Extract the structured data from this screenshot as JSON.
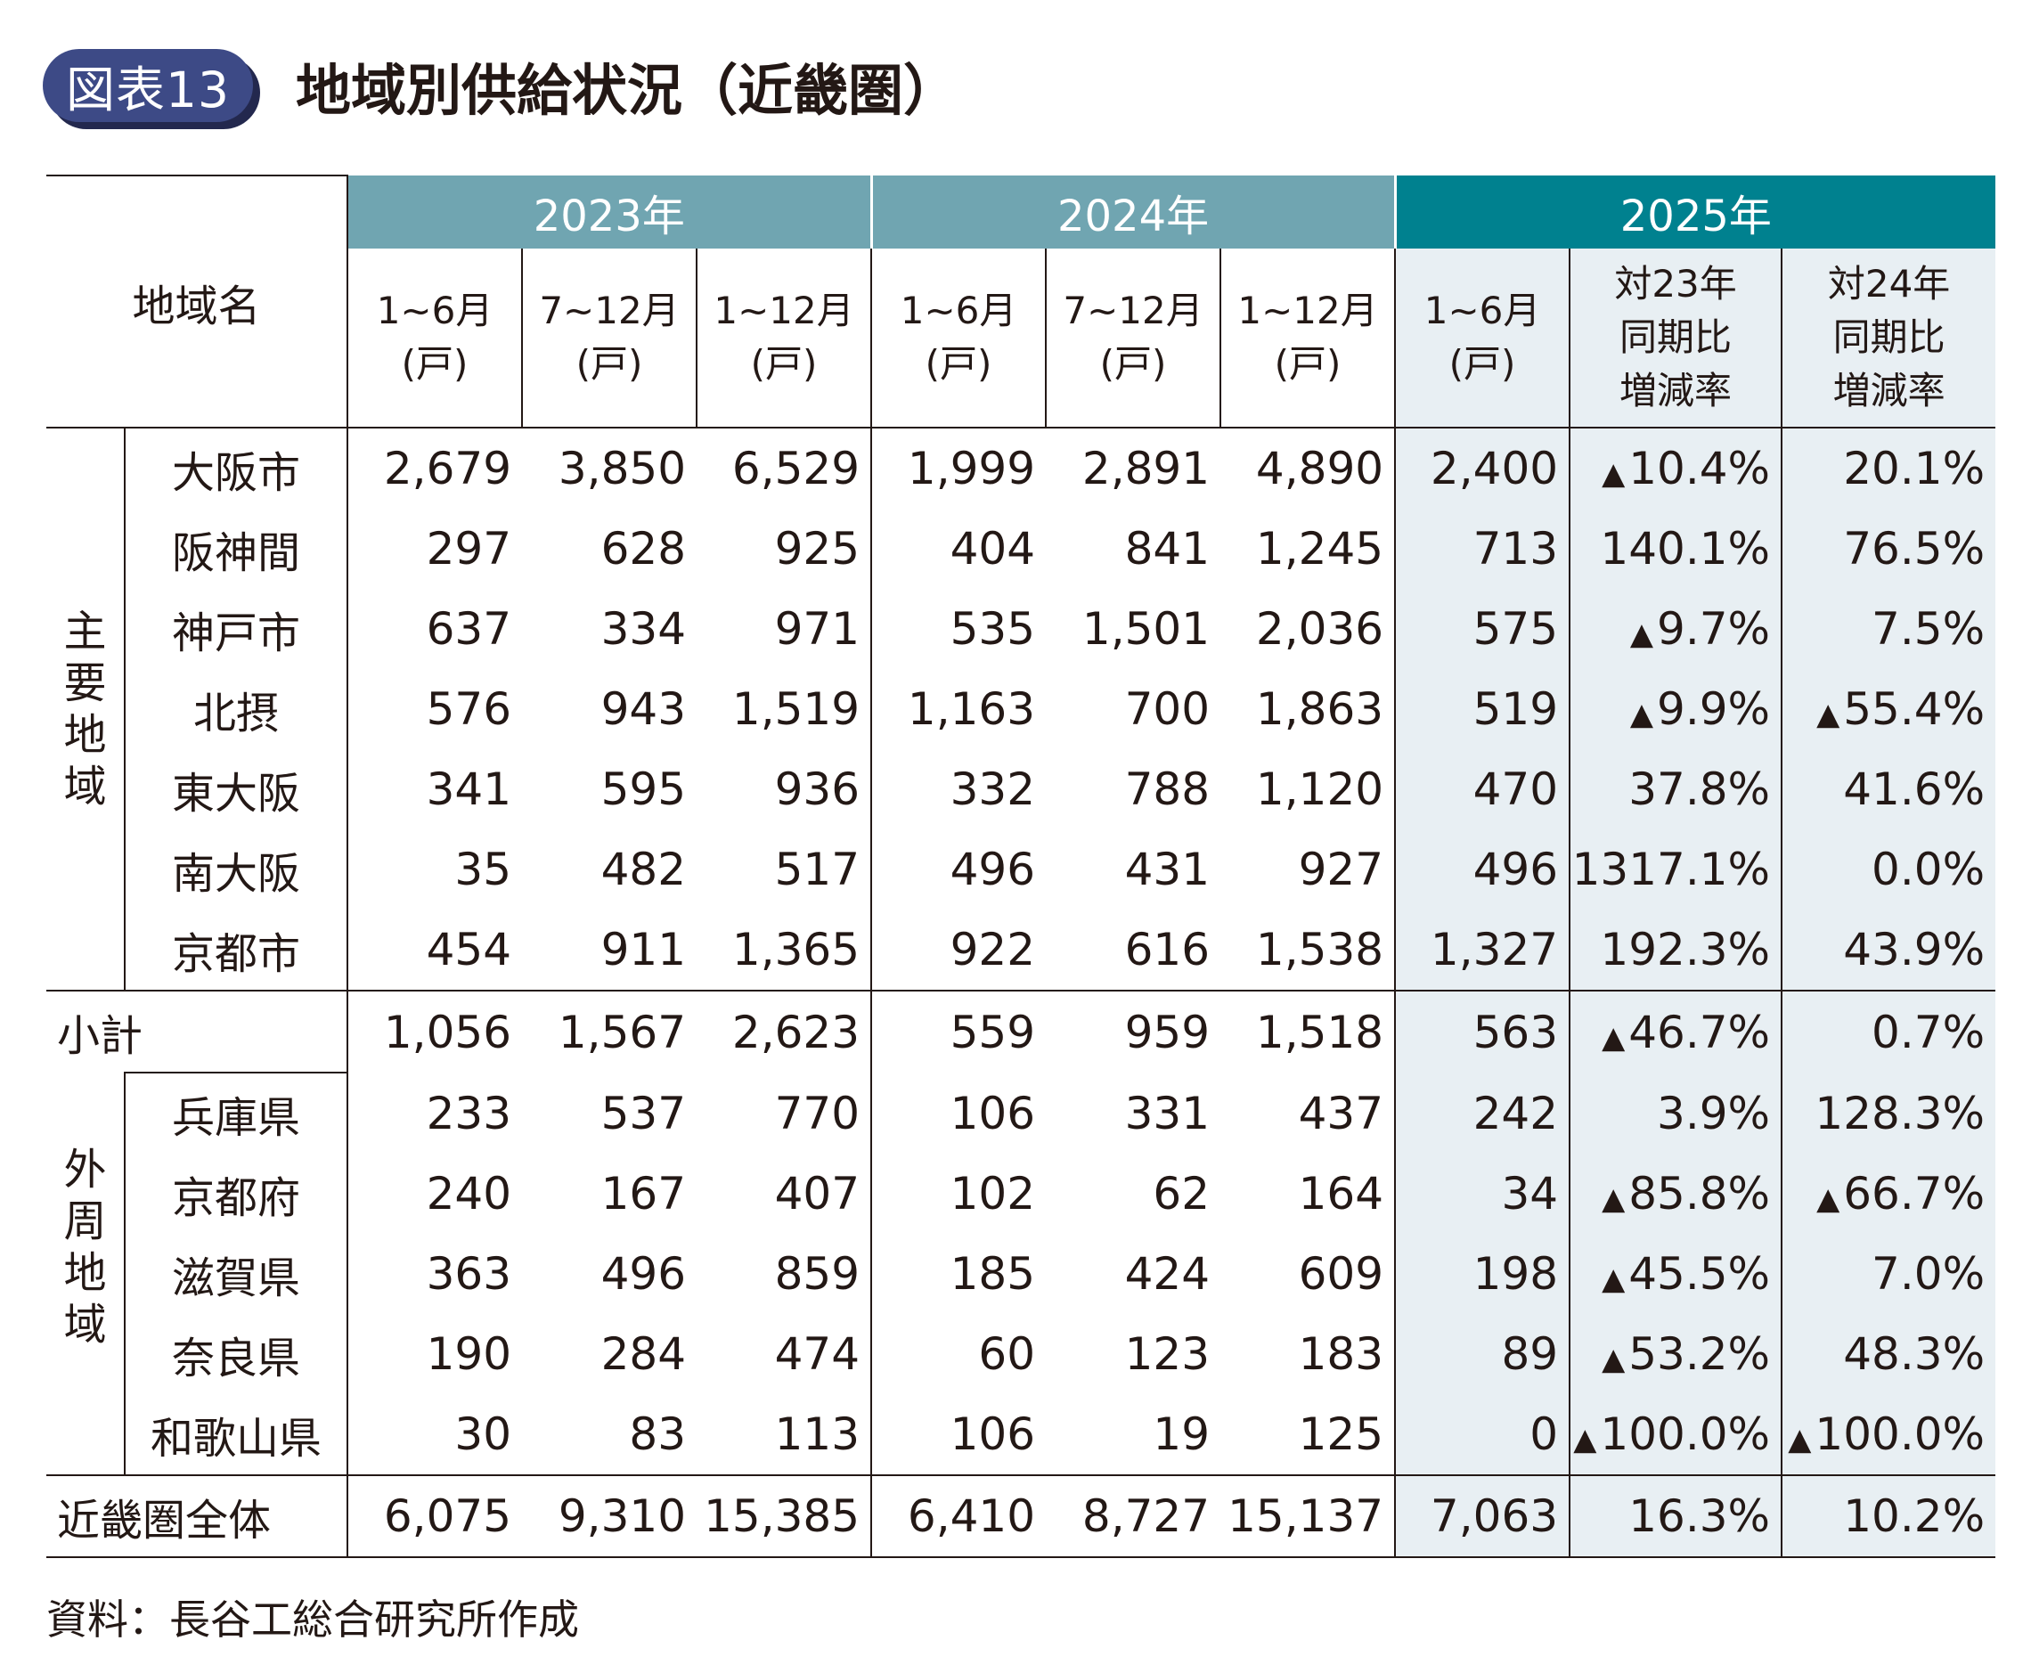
{
  "header": {
    "badge": "図表13",
    "title": "地域別供給状況（近畿圏）"
  },
  "table": {
    "area_header": "地域名",
    "years": [
      "2023年",
      "2024年",
      "2025年"
    ],
    "period_headers": [
      "1~6月\n(戸)",
      "7~12月\n(戸)",
      "1~12月\n(戸)",
      "1~6月\n(戸)",
      "7~12月\n(戸)",
      "1~12月\n(戸)",
      "1~6月\n(戸)",
      "対23年\n同期比\n増減率",
      "対24年\n同期比\n増減率"
    ],
    "group_main": "主要地域",
    "group_outer": "外周地域",
    "decrease_marker": "▲",
    "main_rows": [
      {
        "area": "大阪市",
        "values": [
          "2,679",
          "3,850",
          "6,529",
          "1,999",
          "2,891",
          "4,890",
          "2,400"
        ],
        "vs23": "10.4%",
        "vs23_neg": true,
        "vs24": "20.1%",
        "vs24_neg": false
      },
      {
        "area": "阪神間",
        "values": [
          "297",
          "628",
          "925",
          "404",
          "841",
          "1,245",
          "713"
        ],
        "vs23": "140.1%",
        "vs23_neg": false,
        "vs24": "76.5%",
        "vs24_neg": false
      },
      {
        "area": "神戸市",
        "values": [
          "637",
          "334",
          "971",
          "535",
          "1,501",
          "2,036",
          "575"
        ],
        "vs23": "9.7%",
        "vs23_neg": true,
        "vs24": "7.5%",
        "vs24_neg": false
      },
      {
        "area": "北摂",
        "values": [
          "576",
          "943",
          "1,519",
          "1,163",
          "700",
          "1,863",
          "519"
        ],
        "vs23": "9.9%",
        "vs23_neg": true,
        "vs24": "55.4%",
        "vs24_neg": true
      },
      {
        "area": "東大阪",
        "values": [
          "341",
          "595",
          "936",
          "332",
          "788",
          "1,120",
          "470"
        ],
        "vs23": "37.8%",
        "vs23_neg": false,
        "vs24": "41.6%",
        "vs24_neg": false
      },
      {
        "area": "南大阪",
        "values": [
          "35",
          "482",
          "517",
          "496",
          "431",
          "927",
          "496"
        ],
        "vs23": "1317.1%",
        "vs23_neg": false,
        "vs24": "0.0%",
        "vs24_neg": false
      },
      {
        "area": "京都市",
        "values": [
          "454",
          "911",
          "1,365",
          "922",
          "616",
          "1,538",
          "1,327"
        ],
        "vs23": "192.3%",
        "vs23_neg": false,
        "vs24": "43.9%",
        "vs24_neg": false
      }
    ],
    "subtotal": {
      "area": "小計",
      "values": [
        "1,056",
        "1,567",
        "2,623",
        "559",
        "959",
        "1,518",
        "563"
      ],
      "vs23": "46.7%",
      "vs23_neg": true,
      "vs24": "0.7%",
      "vs24_neg": false
    },
    "outer_rows": [
      {
        "area": "兵庫県",
        "values": [
          "233",
          "537",
          "770",
          "106",
          "331",
          "437",
          "242"
        ],
        "vs23": "3.9%",
        "vs23_neg": false,
        "vs24": "128.3%",
        "vs24_neg": false
      },
      {
        "area": "京都府",
        "values": [
          "240",
          "167",
          "407",
          "102",
          "62",
          "164",
          "34"
        ],
        "vs23": "85.8%",
        "vs23_neg": true,
        "vs24": "66.7%",
        "vs24_neg": true
      },
      {
        "area": "滋賀県",
        "values": [
          "363",
          "496",
          "859",
          "185",
          "424",
          "609",
          "198"
        ],
        "vs23": "45.5%",
        "vs23_neg": true,
        "vs24": "7.0%",
        "vs24_neg": false
      },
      {
        "area": "奈良県",
        "values": [
          "190",
          "284",
          "474",
          "60",
          "123",
          "183",
          "89"
        ],
        "vs23": "53.2%",
        "vs23_neg": true,
        "vs24": "48.3%",
        "vs24_neg": false
      },
      {
        "area": "和歌山県",
        "values": [
          "30",
          "83",
          "113",
          "106",
          "19",
          "125",
          "0"
        ],
        "vs23": "100.0%",
        "vs23_neg": true,
        "vs24": "100.0%",
        "vs24_neg": true
      }
    ],
    "total": {
      "area": "近畿圏全体",
      "values": [
        "6,075",
        "9,310",
        "15,385",
        "6,410",
        "8,727",
        "15,137",
        "7,063"
      ],
      "vs23": "16.3%",
      "vs23_neg": false,
      "vs24": "10.2%",
      "vs24_neg": false
    }
  },
  "source": "資料：長谷工総合研究所作成",
  "colors": {
    "badge_bg": "#3d4a86",
    "year_2023_2024_header": "#70a5b1",
    "year_2025_header": "#00818f",
    "shade_2025": "#e8eff3",
    "text": "#231815"
  }
}
